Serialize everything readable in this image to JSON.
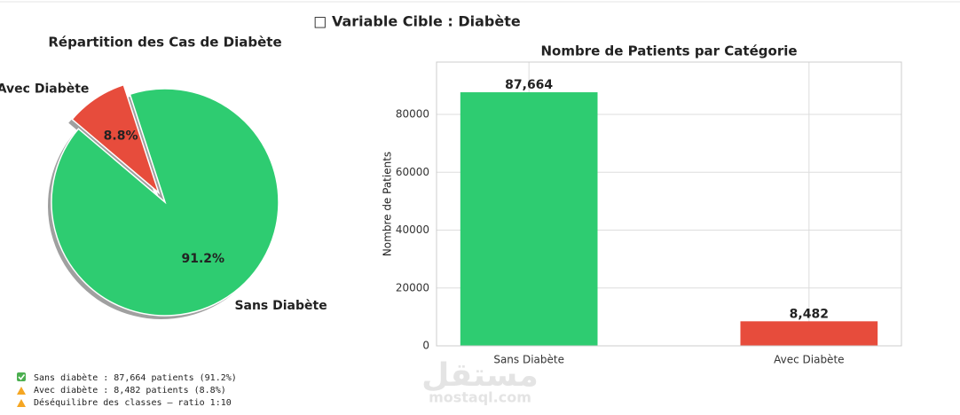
{
  "title": "□ Variable Cible : Diabète",
  "chart_data": [
    {
      "type": "pie",
      "title": "Répartition des Cas de Diabète",
      "categories": [
        "Sans Diabète",
        "Avec Diabète"
      ],
      "values": [
        91.2,
        8.8
      ],
      "value_labels": [
        "91.2%",
        "8.8%"
      ],
      "colors": [
        "#2ecc71",
        "#e74c3c"
      ],
      "shadow": true
    },
    {
      "type": "bar",
      "title": "Nombre de Patients par Catégorie",
      "ylabel": "Nombre de Patients",
      "categories": [
        "Sans Diabète",
        "Avec Diabète"
      ],
      "values": [
        87664,
        8482
      ],
      "value_labels": [
        "87,664",
        "8,482"
      ],
      "colors": [
        "#2ecc71",
        "#e74c3c"
      ],
      "ylim": [
        0,
        98100
      ],
      "yticks": [
        0,
        20000,
        40000,
        60000,
        80000
      ],
      "grid": true
    }
  ],
  "console": [
    "Sans diabète : 87,664 patients (91.2%)",
    " Avec diabète : 8,482 patients (8.8%)",
    " Déséquilibre des classes — ratio 1:10"
  ],
  "watermark": {
    "logo": "مستقل",
    "site": "mostaql.com"
  }
}
